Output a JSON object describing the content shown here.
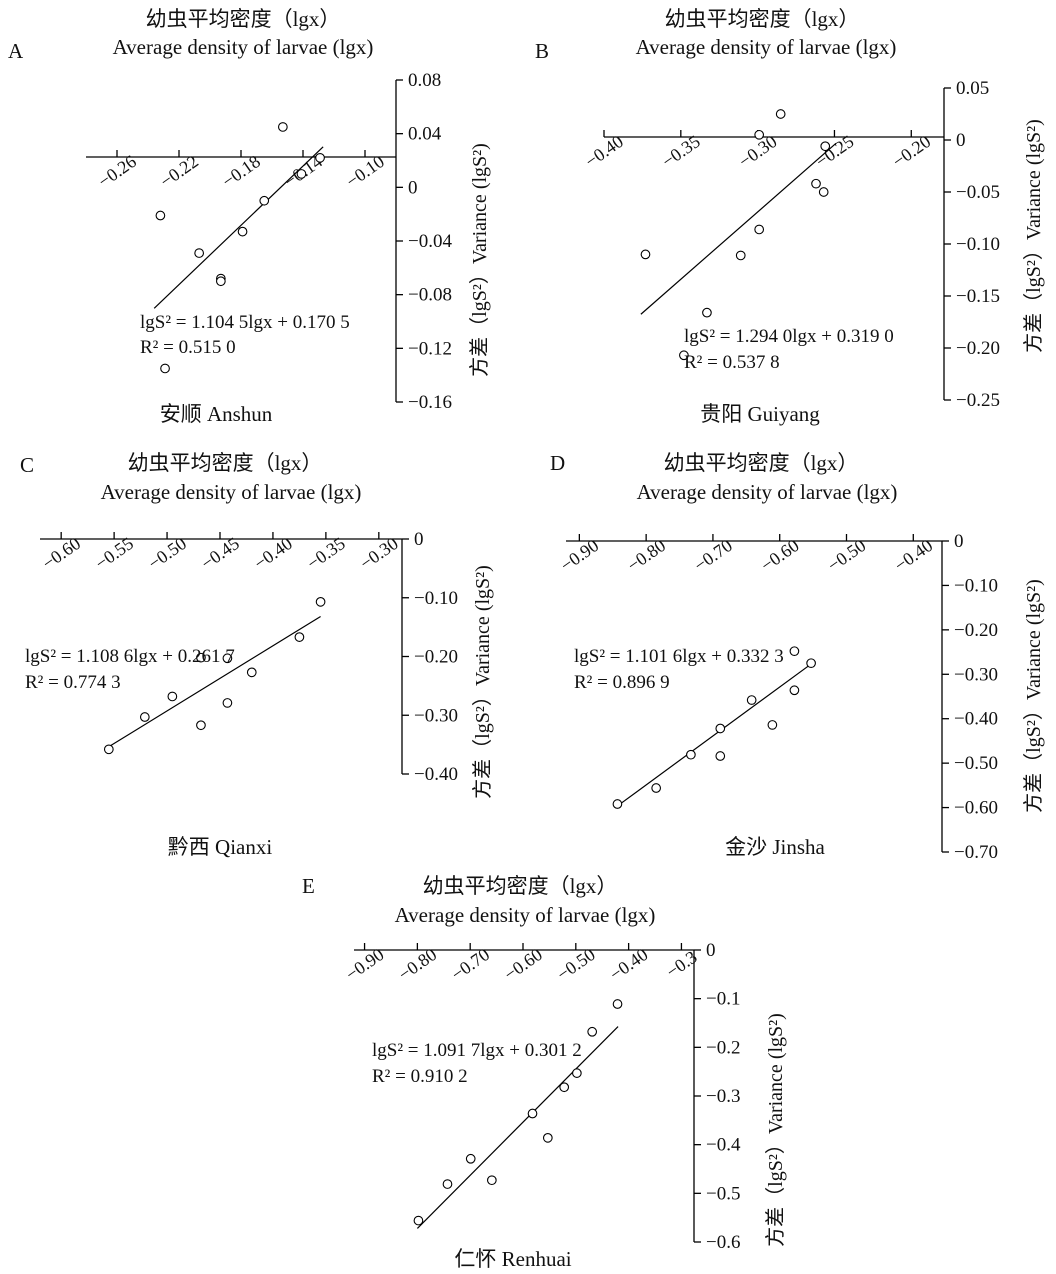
{
  "chart_data": [
    {
      "type": "scatter",
      "panel_letter": "A",
      "title_cn": "幼虫平均密度（lgx）",
      "title_en": "Average density of larvae (lgx)",
      "ylabel": "方差（lgS²）Variance (lgS²)",
      "site": "安顺 Anshun",
      "equation": "lgS² = 1.104 5lgx + 0.170 5",
      "r2": "R² = 0.515 0",
      "slope": 1.1045,
      "intercept": 0.1705,
      "xlim": [
        -0.28,
        -0.08
      ],
      "ylim": [
        -0.16,
        0.08
      ],
      "x_ticks": [
        -0.26,
        -0.22,
        -0.18,
        -0.14,
        -0.1
      ],
      "x_tick_labels": [
        "−0.26",
        "−0.22",
        "−0.18",
        "−0.14",
        "−0.10"
      ],
      "y_ticks": [
        0.08,
        0.04,
        0,
        -0.04,
        -0.08,
        -0.12,
        -0.16
      ],
      "y_tick_labels": [
        "0.08",
        "0.04",
        "0",
        "−0.04",
        "−0.08",
        "−0.12",
        "−0.16"
      ],
      "fit_x_range": [
        -0.236,
        -0.127
      ],
      "points": [
        {
          "x": -0.232,
          "y": -0.021
        },
        {
          "x": -0.207,
          "y": -0.049
        },
        {
          "x": -0.193,
          "y": -0.068
        },
        {
          "x": -0.193,
          "y": -0.07
        },
        {
          "x": -0.179,
          "y": -0.033
        },
        {
          "x": -0.165,
          "y": -0.01
        },
        {
          "x": -0.153,
          "y": 0.045
        },
        {
          "x": -0.141,
          "y": 0.01
        },
        {
          "x": -0.129,
          "y": 0.022
        },
        {
          "x": -0.229,
          "y": -0.135
        }
      ]
    },
    {
      "type": "scatter",
      "panel_letter": "B",
      "title_cn": "幼虫平均密度（lgx）",
      "title_en": "Average density of larvae (lgx)",
      "ylabel": "方差（lgS²）Variance (lgS²)",
      "site": "贵阳 Guiyang",
      "equation": "lgS² = 1.294 0lgx + 0.319 0",
      "r2": "R² = 0.537 8",
      "slope": 1.294,
      "intercept": 0.319,
      "xlim": [
        -0.4,
        -0.18
      ],
      "ylim": [
        -0.25,
        0.05
      ],
      "x_ticks": [
        -0.4,
        -0.35,
        -0.3,
        -0.25,
        -0.2
      ],
      "x_tick_labels": [
        "−0.40",
        "−0.35",
        "−0.30",
        "−0.25",
        "−0.20"
      ],
      "y_ticks": [
        0.05,
        0,
        -0.05,
        -0.1,
        -0.15,
        -0.2,
        -0.25
      ],
      "y_tick_labels": [
        "0.05",
        "0",
        "−0.05",
        "−0.10",
        "−0.15",
        "−0.20",
        "−0.25"
      ],
      "fit_x_range": [
        -0.376,
        -0.249
      ],
      "points": [
        {
          "x": -0.373,
          "y": -0.11
        },
        {
          "x": -0.348,
          "y": -0.207
        },
        {
          "x": -0.333,
          "y": -0.166
        },
        {
          "x": -0.311,
          "y": -0.111
        },
        {
          "x": -0.299,
          "y": -0.086
        },
        {
          "x": -0.299,
          "y": 0.005
        },
        {
          "x": -0.285,
          "y": 0.025
        },
        {
          "x": -0.262,
          "y": -0.042
        },
        {
          "x": -0.257,
          "y": -0.05
        },
        {
          "x": -0.256,
          "y": -0.006
        }
      ]
    },
    {
      "type": "scatter",
      "panel_letter": "C",
      "title_cn": "幼虫平均密度（lgx）",
      "title_en": "Average density of larvae (lgx)",
      "ylabel": "方差（lgS²）Variance (lgS²)",
      "site": "黔西 Qianxi",
      "equation": "lgS² = 1.108 6lgx + 0.261 7",
      "r2": "R² = 0.774 3",
      "slope": 1.1086,
      "intercept": 0.2617,
      "xlim": [
        -0.62,
        -0.28
      ],
      "ylim": [
        -0.4,
        0
      ],
      "x_ticks": [
        -0.6,
        -0.55,
        -0.5,
        -0.45,
        -0.4,
        -0.35,
        -0.3
      ],
      "x_tick_labels": [
        "−0.60",
        "−0.55",
        "−0.50",
        "−0.45",
        "−0.40",
        "−0.35",
        "−0.30"
      ],
      "y_ticks": [
        0,
        -0.1,
        -0.2,
        -0.3,
        -0.4
      ],
      "y_tick_labels": [
        "0",
        "−0.10",
        "−0.20",
        "−0.30",
        "−0.40"
      ],
      "fit_x_range": [
        -0.557,
        -0.355
      ],
      "points": [
        {
          "x": -0.555,
          "y": -0.358
        },
        {
          "x": -0.521,
          "y": -0.303
        },
        {
          "x": -0.495,
          "y": -0.268
        },
        {
          "x": -0.468,
          "y": -0.202
        },
        {
          "x": -0.468,
          "y": -0.317
        },
        {
          "x": -0.443,
          "y": -0.203
        },
        {
          "x": -0.443,
          "y": -0.279
        },
        {
          "x": -0.42,
          "y": -0.227
        },
        {
          "x": -0.375,
          "y": -0.167
        },
        {
          "x": -0.355,
          "y": -0.107
        }
      ]
    },
    {
      "type": "scatter",
      "panel_letter": "D",
      "title_cn": "幼虫平均密度（lgx）",
      "title_en": "Average density of larvae (lgx)",
      "ylabel": "方差（lgS²）Variance (lgS²)",
      "site": "金沙 Jinsha",
      "equation": "lgS² = 1.101 6lgx + 0.332 3",
      "r2": "R² = 0.896 9",
      "slope": 1.1016,
      "intercept": 0.3323,
      "xlim": [
        -0.92,
        -0.36
      ],
      "ylim": [
        -0.7,
        0
      ],
      "x_ticks": [
        -0.9,
        -0.8,
        -0.7,
        -0.6,
        -0.5,
        -0.4
      ],
      "x_tick_labels": [
        "−0.90",
        "−0.80",
        "−0.70",
        "−0.60",
        "−0.50",
        "−0.40"
      ],
      "y_ticks": [
        0,
        -0.1,
        -0.2,
        -0.3,
        -0.4,
        -0.5,
        -0.6,
        -0.7
      ],
      "y_tick_labels": [
        "0",
        "−0.10",
        "−0.20",
        "−0.30",
        "−0.40",
        "−0.50",
        "−0.60",
        "−0.70"
      ],
      "fit_x_range": [
        -0.844,
        -0.548
      ],
      "points": [
        {
          "x": -0.843,
          "y": -0.592
        },
        {
          "x": -0.785,
          "y": -0.556
        },
        {
          "x": -0.733,
          "y": -0.481
        },
        {
          "x": -0.689,
          "y": -0.422
        },
        {
          "x": -0.689,
          "y": -0.484
        },
        {
          "x": -0.642,
          "y": -0.358
        },
        {
          "x": -0.611,
          "y": -0.414
        },
        {
          "x": -0.578,
          "y": -0.248
        },
        {
          "x": -0.578,
          "y": -0.336
        },
        {
          "x": -0.553,
          "y": -0.275
        }
      ]
    },
    {
      "type": "scatter",
      "panel_letter": "E",
      "title_cn": "幼虫平均密度（lgx）",
      "title_en": "Average density of larvae (lgx)",
      "ylabel": "方差（lgS²）Variance (lgS²)",
      "site": "仁怀 Renhuai",
      "equation": "lgS² = 1.091 7lgx + 0.301 2",
      "r2": "R² = 0.910 2",
      "slope": 1.0917,
      "intercept": 0.3012,
      "xlim": [
        -0.92,
        -0.28
      ],
      "ylim": [
        -0.6,
        0
      ],
      "x_ticks": [
        -0.9,
        -0.8,
        -0.7,
        -0.6,
        -0.5,
        -0.4,
        -0.3
      ],
      "x_tick_labels": [
        "−0.90",
        "−0.80",
        "−0.70",
        "−0.60",
        "−0.50",
        "−0.40",
        "−0.3"
      ],
      "y_ticks": [
        0,
        -0.1,
        -0.2,
        -0.3,
        -0.4,
        -0.5,
        -0.6
      ],
      "y_tick_labels": [
        "0",
        "−0.1",
        "−0.2",
        "−0.3",
        "−0.4",
        "−0.5",
        "−0.6"
      ],
      "fit_x_range": [
        -0.8,
        -0.42
      ],
      "points": [
        {
          "x": -0.798,
          "y": -0.556
        },
        {
          "x": -0.743,
          "y": -0.481
        },
        {
          "x": -0.699,
          "y": -0.429
        },
        {
          "x": -0.659,
          "y": -0.473
        },
        {
          "x": -0.582,
          "y": -0.336
        },
        {
          "x": -0.553,
          "y": -0.386
        },
        {
          "x": -0.522,
          "y": -0.282
        },
        {
          "x": -0.498,
          "y": -0.253
        },
        {
          "x": -0.469,
          "y": -0.168
        },
        {
          "x": -0.421,
          "y": -0.111
        }
      ]
    }
  ]
}
